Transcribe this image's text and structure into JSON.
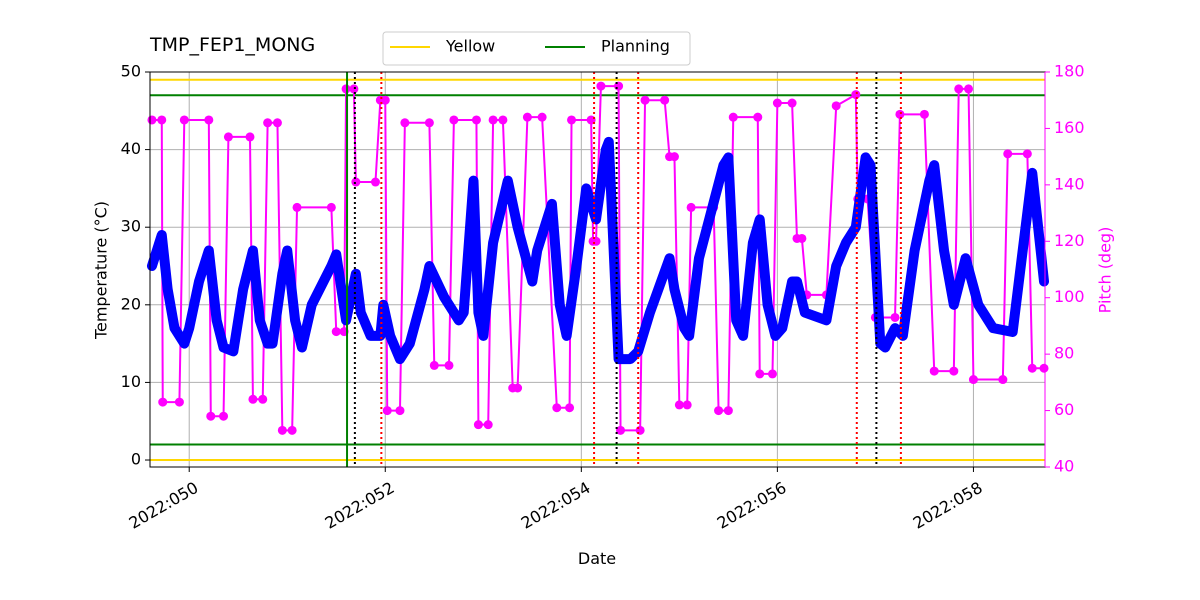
{
  "chart_data": {
    "type": "line",
    "title": "TMP_FEP1_MONG",
    "x_label": "Date",
    "y_label": "Temperature (°C)",
    "y2_label": "Pitch (deg)",
    "xlim": [
      49.6,
      58.73
    ],
    "ylim": [
      -0.9,
      50
    ],
    "y2lim": [
      40,
      180
    ],
    "xticks": [
      {
        "value": 50,
        "label": "2022:050"
      },
      {
        "value": 52,
        "label": "2022:052"
      },
      {
        "value": 54,
        "label": "2022:054"
      },
      {
        "value": 56,
        "label": "2022:056"
      },
      {
        "value": 58,
        "label": "2022:058"
      }
    ],
    "yticks": [
      0,
      10,
      20,
      30,
      40,
      50
    ],
    "y2ticks": [
      40,
      60,
      80,
      100,
      120,
      140,
      160,
      180
    ],
    "grid": true,
    "legend": "top",
    "reference_lines": [
      {
        "name": "Yellow",
        "color": "#ffd700",
        "values": [
          49,
          0
        ]
      },
      {
        "name": "Planning",
        "color": "#008000",
        "values": [
          47,
          2
        ]
      }
    ],
    "vertical_lines": [
      {
        "color": "#008000",
        "style": "solid",
        "x": [
          51.61
        ]
      },
      {
        "color": "#000000",
        "style": "dotted",
        "x": [
          51.69,
          54.36,
          57.01
        ]
      },
      {
        "color": "#ff0000",
        "style": "dotted",
        "x": [
          51.96,
          54.13,
          54.58,
          56.81,
          57.26
        ]
      }
    ],
    "series": [
      {
        "color": "#ff00ff",
        "axis": "y2",
        "markers": true,
        "x": [
          49.62,
          49.72,
          49.73,
          49.9,
          49.95,
          50.2,
          50.22,
          50.35,
          50.4,
          50.62,
          50.65,
          50.75,
          50.8,
          50.9,
          50.95,
          51.05,
          51.1,
          51.45,
          51.5,
          51.58,
          51.6,
          51.68,
          51.7,
          51.9,
          51.95,
          52.0,
          52.02,
          52.15,
          52.2,
          52.45,
          52.5,
          52.65,
          52.7,
          52.93,
          52.95,
          53.05,
          53.1,
          53.2,
          53.3,
          53.35,
          53.45,
          53.6,
          53.75,
          53.88,
          53.9,
          54.1,
          54.12,
          54.15,
          54.2,
          54.38,
          54.4,
          54.6,
          54.65,
          54.85,
          54.9,
          54.95,
          55.0,
          55.08,
          55.12,
          55.35,
          55.4,
          55.5,
          55.55,
          55.8,
          55.82,
          55.95,
          56.0,
          56.15,
          56.2,
          56.25,
          56.3,
          56.5,
          56.6,
          56.8,
          56.82,
          56.92,
          57.0,
          57.2,
          57.25,
          57.5,
          57.6,
          57.8,
          57.85,
          57.95,
          58.0,
          58.3,
          58.35,
          58.55,
          58.6,
          58.72
        ],
        "values": [
          163,
          163,
          63,
          63,
          163,
          163,
          58,
          58,
          157,
          157,
          64,
          64,
          162,
          162,
          53,
          53,
          132,
          132,
          88,
          88,
          174,
          174,
          141,
          141,
          170,
          170,
          60,
          60,
          162,
          162,
          76,
          76,
          163,
          163,
          55,
          55,
          163,
          163,
          68,
          68,
          164,
          164,
          61,
          61,
          163,
          163,
          120,
          120,
          175,
          175,
          53,
          53,
          170,
          170,
          150,
          150,
          62,
          62,
          132,
          132,
          60,
          60,
          164,
          164,
          73,
          73,
          169,
          169,
          121,
          121,
          101,
          101,
          168,
          172,
          135,
          135,
          93,
          93,
          165,
          165,
          74,
          74,
          174,
          174,
          71,
          71,
          151,
          151,
          75,
          75
        ]
      },
      {
        "color": "#0000ff",
        "axis": "y",
        "x": [
          49.62,
          49.72,
          49.78,
          49.85,
          49.95,
          50.0,
          50.1,
          50.2,
          50.28,
          50.35,
          50.45,
          50.55,
          50.65,
          50.72,
          50.8,
          50.85,
          50.95,
          51.0,
          51.08,
          51.15,
          51.25,
          51.45,
          51.5,
          51.6,
          51.7,
          51.75,
          51.85,
          51.95,
          51.98,
          52.05,
          52.15,
          52.25,
          52.4,
          52.45,
          52.6,
          52.75,
          52.8,
          52.9,
          52.95,
          53.0,
          53.1,
          53.25,
          53.35,
          53.5,
          53.55,
          53.7,
          53.78,
          53.85,
          53.95,
          54.05,
          54.15,
          54.25,
          54.28,
          54.38,
          54.5,
          54.58,
          54.7,
          54.9,
          54.95,
          55.05,
          55.1,
          55.2,
          55.45,
          55.5,
          55.58,
          55.65,
          55.75,
          55.82,
          55.9,
          55.98,
          56.05,
          56.15,
          56.2,
          56.28,
          56.5,
          56.6,
          56.7,
          56.8,
          56.9,
          56.95,
          57.05,
          57.1,
          57.2,
          57.28,
          57.4,
          57.55,
          57.6,
          57.7,
          57.8,
          57.92,
          58.05,
          58.2,
          58.4,
          58.6,
          58.72
        ],
        "values": [
          25,
          29,
          22,
          17,
          15,
          17,
          23,
          27,
          18,
          14.5,
          14,
          22,
          27,
          18,
          15,
          15,
          24,
          27,
          18,
          14.5,
          20,
          25,
          26.5,
          18,
          24,
          19,
          16,
          16,
          20,
          16,
          13,
          15,
          22,
          25,
          21,
          18,
          19,
          36,
          19,
          16,
          28,
          36,
          30,
          23,
          27,
          33,
          20,
          16,
          25,
          35,
          31,
          40,
          41,
          13,
          13,
          14,
          19,
          26,
          22,
          17,
          16,
          26,
          38,
          39,
          18,
          16,
          28,
          31,
          20,
          16,
          17,
          23,
          23,
          19,
          18,
          25,
          28,
          30,
          39,
          38,
          15,
          14.5,
          17,
          16,
          27,
          36,
          38,
          27,
          20,
          26,
          20,
          17,
          16.5,
          37,
          23
        ]
      }
    ]
  }
}
